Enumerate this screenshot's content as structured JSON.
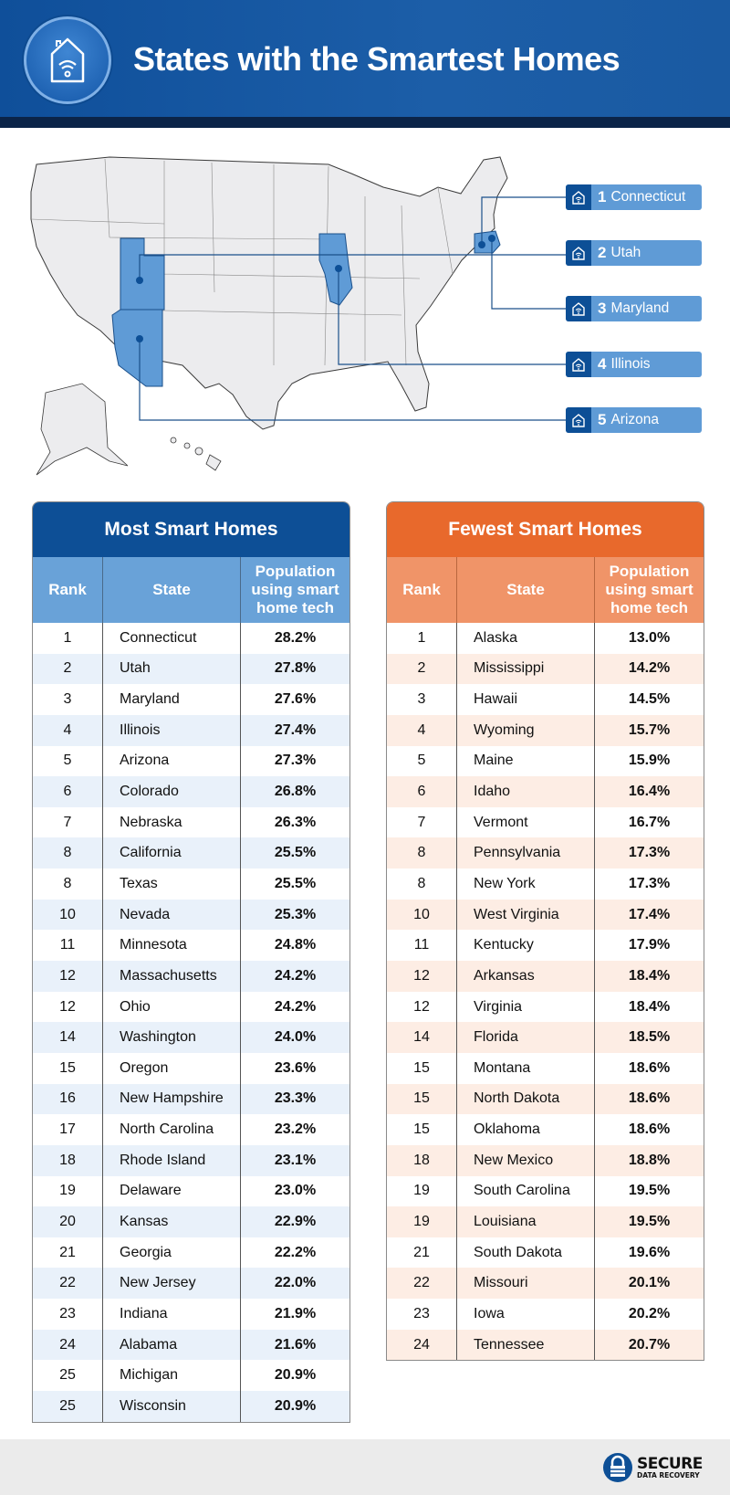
{
  "header": {
    "title": "States with the Smartest Homes",
    "icon": "smart-home-wifi-icon"
  },
  "map": {
    "highlight_color": "#5f9bd6",
    "callouts": [
      {
        "rank": "1",
        "state": "Connecticut"
      },
      {
        "rank": "2",
        "state": "Utah"
      },
      {
        "rank": "3",
        "state": "Maryland"
      },
      {
        "rank": "4",
        "state": "Illinois"
      },
      {
        "rank": "5",
        "state": "Arizona"
      }
    ]
  },
  "most": {
    "title": "Most Smart Homes",
    "color": "#0d4f96",
    "columns": [
      "Rank",
      "State",
      "Population using smart home tech"
    ],
    "rows": [
      [
        "1",
        "Connecticut",
        "28.2%"
      ],
      [
        "2",
        "Utah",
        "27.8%"
      ],
      [
        "3",
        "Maryland",
        "27.6%"
      ],
      [
        "4",
        "Illinois",
        "27.4%"
      ],
      [
        "5",
        "Arizona",
        "27.3%"
      ],
      [
        "6",
        "Colorado",
        "26.8%"
      ],
      [
        "7",
        "Nebraska",
        "26.3%"
      ],
      [
        "8",
        "California",
        "25.5%"
      ],
      [
        "8",
        "Texas",
        "25.5%"
      ],
      [
        "10",
        "Nevada",
        "25.3%"
      ],
      [
        "11",
        "Minnesota",
        "24.8%"
      ],
      [
        "12",
        "Massachusetts",
        "24.2%"
      ],
      [
        "12",
        "Ohio",
        "24.2%"
      ],
      [
        "14",
        "Washington",
        "24.0%"
      ],
      [
        "15",
        "Oregon",
        "23.6%"
      ],
      [
        "16",
        "New Hampshire",
        "23.3%"
      ],
      [
        "17",
        "North Carolina",
        "23.2%"
      ],
      [
        "18",
        "Rhode Island",
        "23.1%"
      ],
      [
        "19",
        "Delaware",
        "23.0%"
      ],
      [
        "20",
        "Kansas",
        "22.9%"
      ],
      [
        "21",
        "Georgia",
        "22.2%"
      ],
      [
        "22",
        "New Jersey",
        "22.0%"
      ],
      [
        "23",
        "Indiana",
        "21.9%"
      ],
      [
        "24",
        "Alabama",
        "21.6%"
      ],
      [
        "25",
        "Michigan",
        "20.9%"
      ],
      [
        "25",
        "Wisconsin",
        "20.9%"
      ]
    ]
  },
  "fewest": {
    "title": "Fewest Smart Homes",
    "color": "#e8692c",
    "columns": [
      "Rank",
      "State",
      "Population using smart home tech"
    ],
    "rows": [
      [
        "1",
        "Alaska",
        "13.0%"
      ],
      [
        "2",
        "Mississippi",
        "14.2%"
      ],
      [
        "3",
        "Hawaii",
        "14.5%"
      ],
      [
        "4",
        "Wyoming",
        "15.7%"
      ],
      [
        "5",
        "Maine",
        "15.9%"
      ],
      [
        "6",
        "Idaho",
        "16.4%"
      ],
      [
        "7",
        "Vermont",
        "16.7%"
      ],
      [
        "8",
        "Pennsylvania",
        "17.3%"
      ],
      [
        "8",
        "New York",
        "17.3%"
      ],
      [
        "10",
        "West Virginia",
        "17.4%"
      ],
      [
        "11",
        "Kentucky",
        "17.9%"
      ],
      [
        "12",
        "Arkansas",
        "18.4%"
      ],
      [
        "12",
        "Virginia",
        "18.4%"
      ],
      [
        "14",
        "Florida",
        "18.5%"
      ],
      [
        "15",
        "Montana",
        "18.6%"
      ],
      [
        "15",
        "North Dakota",
        "18.6%"
      ],
      [
        "15",
        "Oklahoma",
        "18.6%"
      ],
      [
        "18",
        "New Mexico",
        "18.8%"
      ],
      [
        "19",
        "South Carolina",
        "19.5%"
      ],
      [
        "19",
        "Louisiana",
        "19.5%"
      ],
      [
        "21",
        "South Dakota",
        "19.6%"
      ],
      [
        "22",
        "Missouri",
        "20.1%"
      ],
      [
        "23",
        "Iowa",
        "20.2%"
      ],
      [
        "24",
        "Tennessee",
        "20.7%"
      ]
    ]
  },
  "footer": {
    "brand_line1": "SECURE",
    "brand_line2": "DATA RECOVERY"
  }
}
